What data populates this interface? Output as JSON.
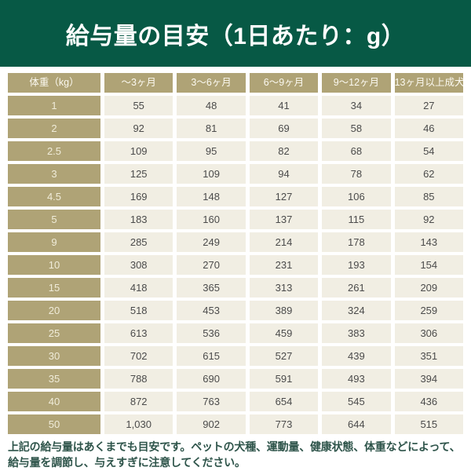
{
  "banner": {
    "title": "給与量の目安（1日あたり：g）"
  },
  "chart_data": {
    "type": "table",
    "title": "給与量の目安（1日あたり：g）",
    "columns": [
      "体重（kg）",
      "～3ヶ月",
      "3～6ヶ月",
      "6～9ヶ月",
      "9～12ヶ月",
      "13ヶ月以上成犬"
    ],
    "rows": [
      {
        "weight": "1",
        "values": [
          "55",
          "48",
          "41",
          "34",
          "27"
        ]
      },
      {
        "weight": "2",
        "values": [
          "92",
          "81",
          "69",
          "58",
          "46"
        ]
      },
      {
        "weight": "2.5",
        "values": [
          "109",
          "95",
          "82",
          "68",
          "54"
        ]
      },
      {
        "weight": "3",
        "values": [
          "125",
          "109",
          "94",
          "78",
          "62"
        ]
      },
      {
        "weight": "4.5",
        "values": [
          "169",
          "148",
          "127",
          "106",
          "85"
        ]
      },
      {
        "weight": "5",
        "values": [
          "183",
          "160",
          "137",
          "115",
          "92"
        ]
      },
      {
        "weight": "9",
        "values": [
          "285",
          "249",
          "214",
          "178",
          "143"
        ]
      },
      {
        "weight": "10",
        "values": [
          "308",
          "270",
          "231",
          "193",
          "154"
        ]
      },
      {
        "weight": "15",
        "values": [
          "418",
          "365",
          "313",
          "261",
          "209"
        ]
      },
      {
        "weight": "20",
        "values": [
          "518",
          "453",
          "389",
          "324",
          "259"
        ]
      },
      {
        "weight": "25",
        "values": [
          "613",
          "536",
          "459",
          "383",
          "306"
        ]
      },
      {
        "weight": "30",
        "values": [
          "702",
          "615",
          "527",
          "439",
          "351"
        ]
      },
      {
        "weight": "35",
        "values": [
          "788",
          "690",
          "591",
          "493",
          "394"
        ]
      },
      {
        "weight": "40",
        "values": [
          "872",
          "763",
          "654",
          "545",
          "436"
        ]
      },
      {
        "weight": "50",
        "values": [
          "1,030",
          "902",
          "773",
          "644",
          "515"
        ]
      }
    ]
  },
  "footer": {
    "text": "上記の給与量はあくまでも目安です。ペットの犬種、運動量、健康状態、体重などによって、給与量を調節し、与えすぎに注意してください。"
  },
  "colors": {
    "banner_green": "#075945",
    "header_olive": "#afa376",
    "cell_cream": "#f1eee3",
    "value_text": "#4b4b4b",
    "footer_green": "#2e544a"
  }
}
